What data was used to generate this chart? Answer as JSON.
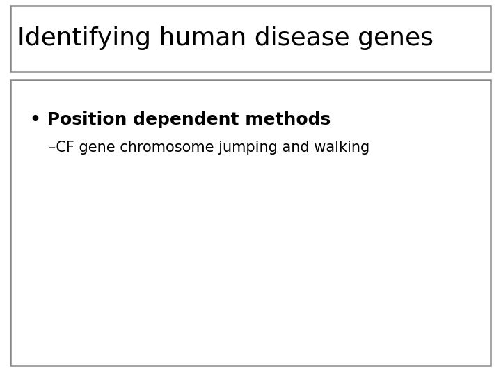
{
  "title": "Identifying human disease genes",
  "bullet_text": "Position dependent methods",
  "sub_bullet_text": "–CF gene chromosome jumping and walking",
  "bg_color": "#ffffff",
  "border_color": "#888888",
  "text_color": "#000000",
  "title_fontsize": 26,
  "bullet_fontsize": 18,
  "sub_bullet_fontsize": 15,
  "title_font_weight": "normal",
  "bullet_font_weight": "bold",
  "sub_font_weight": "normal",
  "font_family": "DejaVu Sans",
  "fig_width": 7.2,
  "fig_height": 5.4,
  "dpi": 100
}
